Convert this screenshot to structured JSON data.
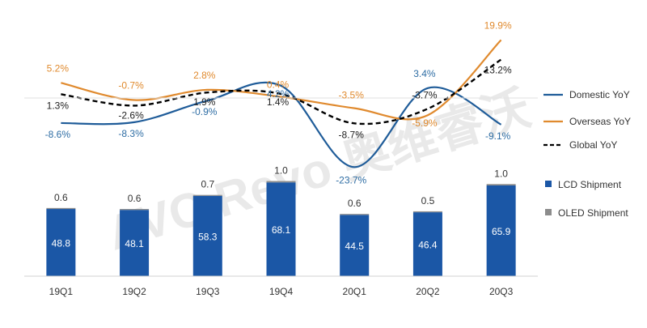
{
  "chart_data": {
    "type": "bar+line",
    "categories": [
      "19Q1",
      "19Q2",
      "19Q3",
      "19Q4",
      "20Q1",
      "20Q2",
      "20Q3"
    ],
    "bar_series": [
      {
        "name": "LCD Shipment",
        "values": [
          48.8,
          48.1,
          58.3,
          68.1,
          44.5,
          46.4,
          65.9
        ],
        "color": "#1b57a6",
        "value_label_color": "#ffffff"
      },
      {
        "name": "OLED Shipment",
        "values": [
          0.6,
          0.6,
          0.7,
          1.0,
          0.6,
          0.5,
          1.0
        ],
        "color": "#8c8c8c",
        "value_label_color": "#333333"
      }
    ],
    "line_series": [
      {
        "name": "Domestic YoY",
        "values": [
          -8.6,
          -8.3,
          -0.9,
          4.2,
          -23.7,
          3.4,
          -9.1
        ],
        "labels": [
          "-8.6%",
          "-8.3%",
          "-0.9%",
          "4.2%",
          "-23.7%",
          "3.4%",
          "-9.1%"
        ],
        "color": "#1f5c99",
        "label_color": "#2e6da4",
        "dashed": false
      },
      {
        "name": "Overseas YoY",
        "values": [
          5.2,
          -0.7,
          2.8,
          0.4,
          -3.5,
          -5.9,
          19.9
        ],
        "labels": [
          "5.2%",
          "-0.7%",
          "2.8%",
          "0.4%",
          "-3.5%",
          "-5.9%",
          "19.9%"
        ],
        "color": "#e08a2e",
        "label_color": "#e08a2e",
        "dashed": false
      },
      {
        "name": "Global YoY",
        "values": [
          1.3,
          -2.6,
          1.9,
          1.4,
          -8.7,
          -3.7,
          13.2
        ],
        "labels": [
          "1.3%",
          "-2.6%",
          "1.9%",
          "1.4%",
          "-8.7%",
          "-3.7%",
          "13.2%"
        ],
        "color": "#000000",
        "label_color": "#222222",
        "dashed": true
      }
    ],
    "legend": [
      "Domestic YoY",
      "Overseas YoY",
      "Global YoY",
      "LCD Shipment",
      "OLED Shipment"
    ],
    "legend_position": "right",
    "grid": false,
    "watermark": "AVC Revo 奥维睿沃"
  }
}
